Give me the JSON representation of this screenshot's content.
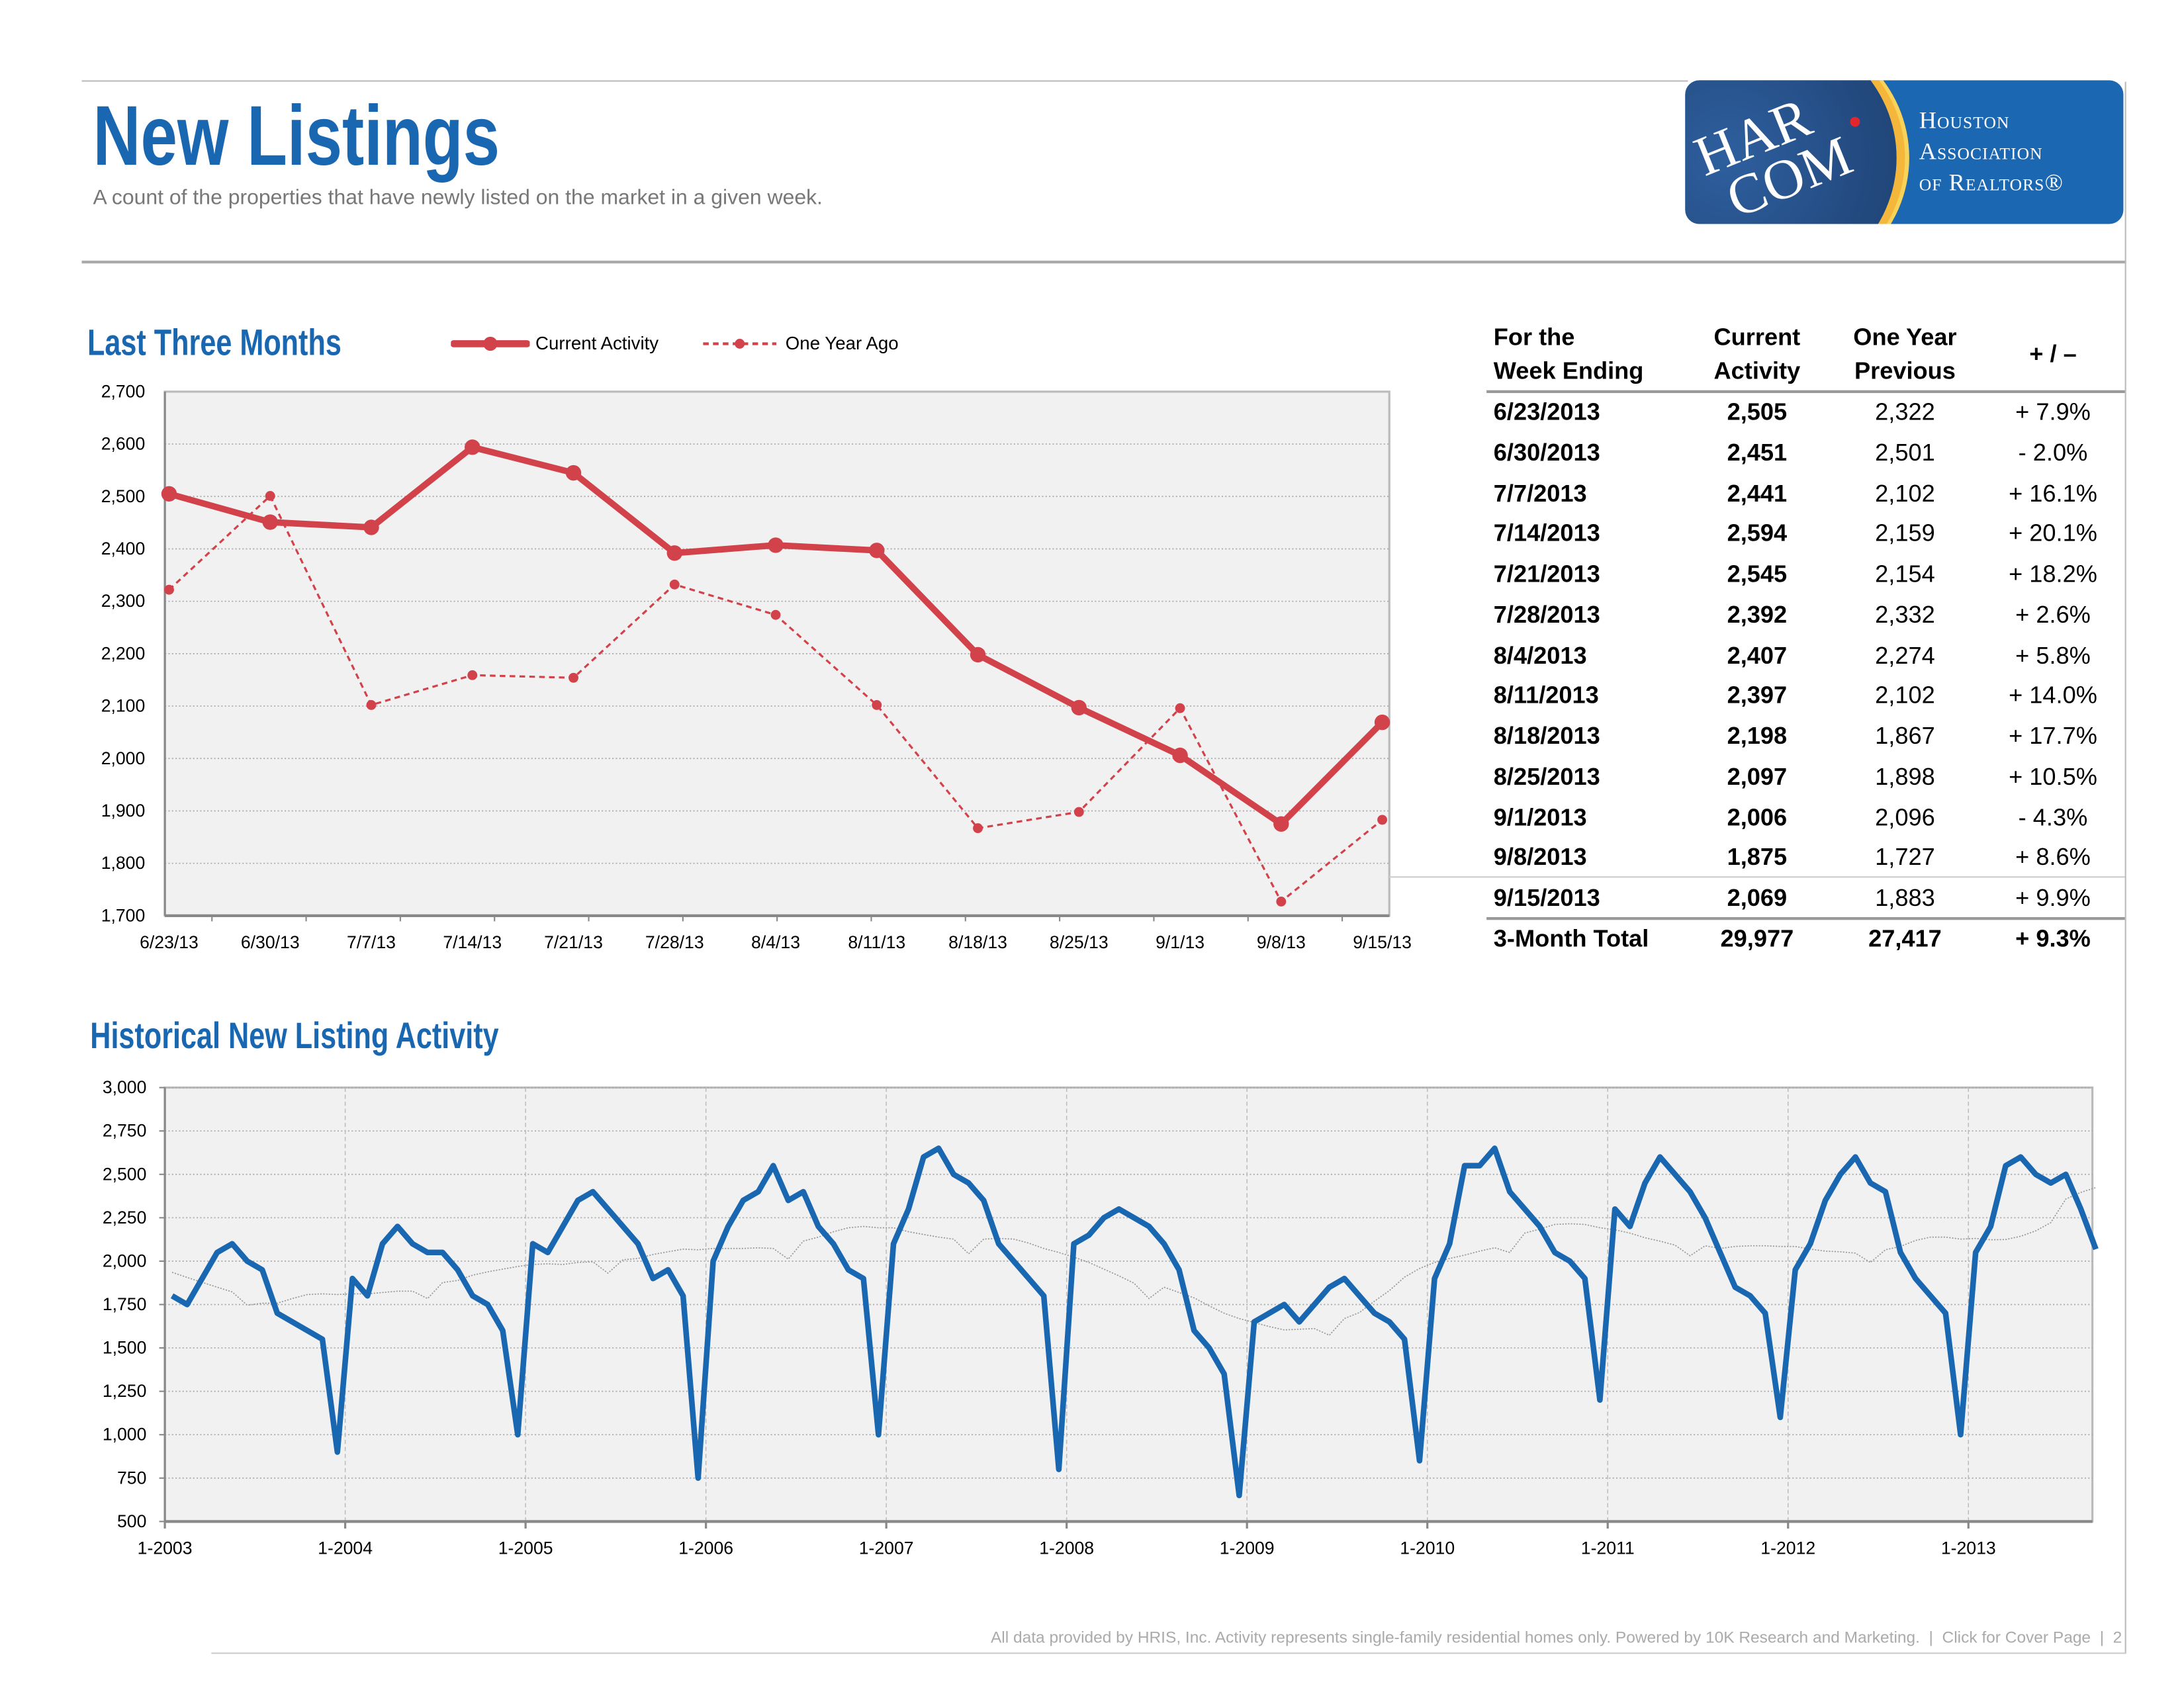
{
  "header": {
    "title": "New Listings",
    "subtitle": "A count of the properties that have newly listed on the market in a given week.",
    "logo": {
      "mark": "HAR.COM",
      "org_lines": [
        "Houston",
        "Association",
        "of Realtors®"
      ]
    }
  },
  "colors": {
    "brand_blue": "#1a67b1",
    "current": "#d2424b",
    "history": "#1a67b1",
    "plot_bg": "#f1f1f1"
  },
  "section_recent": {
    "title": "Last Three Months"
  },
  "section_history": {
    "title": "Historical New Listing Activity"
  },
  "table": {
    "headers": [
      [
        "For the",
        "Week Ending"
      ],
      [
        "Current",
        "Activity"
      ],
      [
        "One Year",
        "Previous"
      ],
      [
        "+ / –"
      ]
    ],
    "rows": [
      [
        "6/23/2013",
        "2,505",
        "2,322",
        "+ 7.9%"
      ],
      [
        "6/30/2013",
        "2,451",
        "2,501",
        "- 2.0%"
      ],
      [
        "7/7/2013",
        "2,441",
        "2,102",
        "+ 16.1%"
      ],
      [
        "7/14/2013",
        "2,594",
        "2,159",
        "+ 20.1%"
      ],
      [
        "7/21/2013",
        "2,545",
        "2,154",
        "+ 18.2%"
      ],
      [
        "7/28/2013",
        "2,392",
        "2,332",
        "+ 2.6%"
      ],
      [
        "8/4/2013",
        "2,407",
        "2,274",
        "+ 5.8%"
      ],
      [
        "8/11/2013",
        "2,397",
        "2,102",
        "+ 14.0%"
      ],
      [
        "8/18/2013",
        "2,198",
        "1,867",
        "+ 17.7%"
      ],
      [
        "8/25/2013",
        "2,097",
        "1,898",
        "+ 10.5%"
      ],
      [
        "9/1/2013",
        "2,006",
        "2,096",
        "- 4.3%"
      ],
      [
        "9/8/2013",
        "1,875",
        "1,727",
        "+ 8.6%"
      ],
      [
        "9/15/2013",
        "2,069",
        "1,883",
        "+ 9.9%"
      ]
    ],
    "total": [
      "3-Month Total",
      "29,977",
      "27,417",
      "+ 9.3%"
    ]
  },
  "footer": {
    "text": "All data provided by HRIS, Inc. Activity represents single-family residential homes only. Powered by 10K Research and Marketing.",
    "cover_link": "Click for Cover Page",
    "page": "2"
  },
  "chart_data": [
    {
      "type": "line",
      "title": "Last Three Months",
      "legend_placement": "top",
      "categories": [
        "6/23/13",
        "6/30/13",
        "7/7/13",
        "7/14/13",
        "7/21/13",
        "7/28/13",
        "8/4/13",
        "8/11/13",
        "8/18/13",
        "8/25/13",
        "9/1/13",
        "9/8/13",
        "9/15/13"
      ],
      "series": [
        {
          "name": "Current Activity",
          "style": "solid",
          "values": [
            2505,
            2451,
            2441,
            2594,
            2545,
            2392,
            2407,
            2397,
            2198,
            2097,
            2006,
            1875,
            2069
          ]
        },
        {
          "name": "One Year Ago",
          "style": "dashed",
          "values": [
            2322,
            2501,
            2102,
            2159,
            2154,
            2332,
            2274,
            2102,
            1867,
            1898,
            2096,
            1727,
            1883
          ]
        }
      ],
      "ylim": [
        1700,
        2700
      ],
      "yticks": [
        "1,700",
        "1,800",
        "1,900",
        "2,000",
        "2,100",
        "2,200",
        "2,300",
        "2,400",
        "2,500",
        "2,600",
        "2,700"
      ],
      "grid": true
    },
    {
      "type": "line",
      "title": "Historical New Listing Activity",
      "trendline": true,
      "grid": true,
      "ylim": [
        500,
        3000
      ],
      "yticks": [
        "500",
        "750",
        "1,000",
        "1,250",
        "1,500",
        "1,750",
        "2,000",
        "2,250",
        "2,500",
        "2,750",
        "3,000"
      ],
      "xticks": [
        "1-2003",
        "1-2004",
        "1-2005",
        "1-2006",
        "1-2007",
        "1-2008",
        "1-2009",
        "1-2010",
        "1-2011",
        "1-2012",
        "1-2013"
      ],
      "series": [
        {
          "x": [
            "2003-01",
            "2003-02",
            "2003-03",
            "2003-04",
            "2003-05",
            "2003-06",
            "2003-07",
            "2003-08",
            "2003-09",
            "2003-10",
            "2003-11",
            "2003-12",
            "2004-01",
            "2004-02",
            "2004-03",
            "2004-04",
            "2004-05",
            "2004-06",
            "2004-07",
            "2004-08",
            "2004-09",
            "2004-10",
            "2004-11",
            "2004-12",
            "2005-01",
            "2005-02",
            "2005-03",
            "2005-04",
            "2005-05",
            "2005-06",
            "2005-07",
            "2005-08",
            "2005-09",
            "2005-10",
            "2005-11",
            "2005-12",
            "2006-01",
            "2006-02",
            "2006-03",
            "2006-04",
            "2006-05",
            "2006-06",
            "2006-07",
            "2006-08",
            "2006-09",
            "2006-10",
            "2006-11",
            "2006-12",
            "2007-01",
            "2007-02",
            "2007-03",
            "2007-04",
            "2007-05",
            "2007-06",
            "2007-07",
            "2007-08",
            "2007-09",
            "2007-10",
            "2007-11",
            "2007-12",
            "2008-01",
            "2008-02",
            "2008-03",
            "2008-04",
            "2008-05",
            "2008-06",
            "2008-07",
            "2008-08",
            "2008-09",
            "2008-10",
            "2008-11",
            "2008-12",
            "2009-01",
            "2009-02",
            "2009-03",
            "2009-04",
            "2009-05",
            "2009-06",
            "2009-07",
            "2009-08",
            "2009-09",
            "2009-10",
            "2009-11",
            "2009-12",
            "2010-01",
            "2010-02",
            "2010-03",
            "2010-04",
            "2010-05",
            "2010-06",
            "2010-07",
            "2010-08",
            "2010-09",
            "2010-10",
            "2010-11",
            "2010-12",
            "2011-01",
            "2011-02",
            "2011-03",
            "2011-04",
            "2011-05",
            "2011-06",
            "2011-07",
            "2011-08",
            "2011-09",
            "2011-10",
            "2011-11",
            "2011-12",
            "2012-01",
            "2012-02",
            "2012-03",
            "2012-04",
            "2012-05",
            "2012-06",
            "2012-07",
            "2012-08",
            "2012-09",
            "2012-10",
            "2012-11",
            "2012-12",
            "2013-01",
            "2013-02",
            "2013-03",
            "2013-04",
            "2013-05",
            "2013-06",
            "2013-07",
            "2013-08",
            "2013-09"
          ],
          "values": [
            1800,
            1750,
            1900,
            2050,
            2100,
            2000,
            1950,
            1700,
            1650,
            1600,
            1550,
            900,
            1900,
            1800,
            2100,
            2200,
            2100,
            2050,
            2050,
            1950,
            1800,
            1750,
            1600,
            1000,
            2100,
            2050,
            2200,
            2350,
            2400,
            2300,
            2200,
            2100,
            1900,
            1950,
            1800,
            750,
            2000,
            2200,
            2350,
            2400,
            2550,
            2350,
            2400,
            2200,
            2100,
            1950,
            1900,
            1000,
            2100,
            2300,
            2600,
            2650,
            2500,
            2450,
            2350,
            2100,
            2000,
            1900,
            1800,
            800,
            2100,
            2150,
            2250,
            2300,
            2250,
            2200,
            2100,
            1950,
            1600,
            1500,
            1350,
            650,
            1650,
            1700,
            1750,
            1650,
            1750,
            1850,
            1900,
            1800,
            1700,
            1650,
            1550,
            850,
            1900,
            2100,
            2550,
            2550,
            2650,
            2400,
            2300,
            2200,
            2050,
            2000,
            1900,
            1200,
            2300,
            2200,
            2450,
            2600,
            2500,
            2400,
            2250,
            2050,
            1850,
            1800,
            1700,
            1100,
            1950,
            2100,
            2350,
            2500,
            2600,
            2450,
            2400,
            2050,
            1900,
            1800,
            1700,
            1000,
            2050,
            2200,
            2550,
            2600,
            2500,
            2450,
            2500,
            2300,
            2069
          ]
        }
      ]
    }
  ]
}
